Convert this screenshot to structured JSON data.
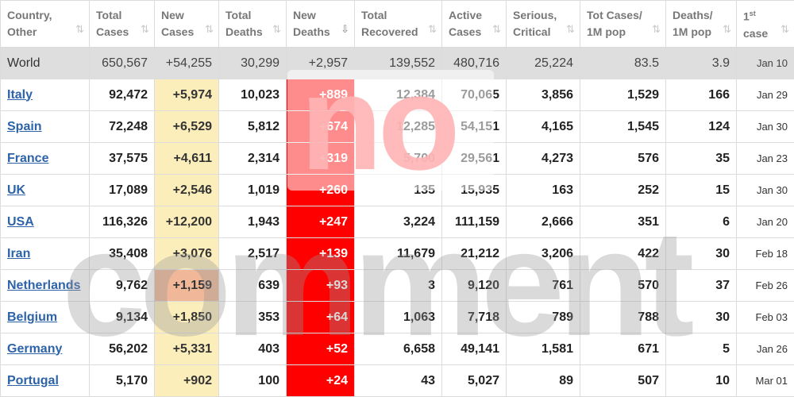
{
  "columns": [
    {
      "line1": "Country,",
      "line2": "Other",
      "sort": "⇅",
      "sup": ""
    },
    {
      "line1": "Total",
      "line2": "Cases",
      "sort": "⇅",
      "sup": ""
    },
    {
      "line1": "New",
      "line2": "Cases",
      "sort": "⇅",
      "sup": ""
    },
    {
      "line1": "Total",
      "line2": "Deaths",
      "sort": "⇅",
      "sup": ""
    },
    {
      "line1": "New",
      "line2": "Deaths",
      "sort": "⇩",
      "sup": ""
    },
    {
      "line1": "Total",
      "line2": "Recovered",
      "sort": "⇅",
      "sup": ""
    },
    {
      "line1": "Active",
      "line2": "Cases",
      "sort": "⇅",
      "sup": ""
    },
    {
      "line1": "Serious,",
      "line2": "Critical",
      "sort": "⇅",
      "sup": ""
    },
    {
      "line1": "Tot Cases/",
      "line2": "1M pop",
      "sort": "⇅",
      "sup": ""
    },
    {
      "line1": "Deaths/",
      "line2": "1M pop",
      "sort": "⇅",
      "sup": ""
    },
    {
      "line1": "1",
      "line2": "case",
      "sort": "⇅",
      "sup": "st"
    }
  ],
  "world": {
    "country": "World",
    "total_cases": "650,567",
    "new_cases": "+54,255",
    "total_deaths": "30,299",
    "new_deaths": "+2,957",
    "total_recovered": "139,552",
    "active_cases": "480,716",
    "serious": "25,224",
    "tot_cases_1m": "83.5",
    "deaths_1m": "3.9",
    "first_case": "Jan 10"
  },
  "rows": [
    {
      "country": "Italy",
      "total_cases": "92,472",
      "new_cases": "+5,974",
      "total_deaths": "10,023",
      "new_deaths": "+889",
      "total_recovered": "12,384",
      "active_cases": "70,065",
      "serious": "3,856",
      "tot_cases_1m": "1,529",
      "deaths_1m": "166",
      "first_case": "Jan 29"
    },
    {
      "country": "Spain",
      "total_cases": "72,248",
      "new_cases": "+6,529",
      "total_deaths": "5,812",
      "new_deaths": "+674",
      "total_recovered": "12,285",
      "active_cases": "54,151",
      "serious": "4,165",
      "tot_cases_1m": "1,545",
      "deaths_1m": "124",
      "first_case": "Jan 30"
    },
    {
      "country": "France",
      "total_cases": "37,575",
      "new_cases": "+4,611",
      "total_deaths": "2,314",
      "new_deaths": "+319",
      "total_recovered": "5,700",
      "active_cases": "29,561",
      "serious": "4,273",
      "tot_cases_1m": "576",
      "deaths_1m": "35",
      "first_case": "Jan 23"
    },
    {
      "country": "UK",
      "total_cases": "17,089",
      "new_cases": "+2,546",
      "total_deaths": "1,019",
      "new_deaths": "+260",
      "total_recovered": "135",
      "active_cases": "15,935",
      "serious": "163",
      "tot_cases_1m": "252",
      "deaths_1m": "15",
      "first_case": "Jan 30"
    },
    {
      "country": "USA",
      "total_cases": "116,326",
      "new_cases": "+12,200",
      "total_deaths": "1,943",
      "new_deaths": "+247",
      "total_recovered": "3,224",
      "active_cases": "111,159",
      "serious": "2,666",
      "tot_cases_1m": "351",
      "deaths_1m": "6",
      "first_case": "Jan 20"
    },
    {
      "country": "Iran",
      "total_cases": "35,408",
      "new_cases": "+3,076",
      "total_deaths": "2,517",
      "new_deaths": "+139",
      "total_recovered": "11,679",
      "active_cases": "21,212",
      "serious": "3,206",
      "tot_cases_1m": "422",
      "deaths_1m": "30",
      "first_case": "Feb 18"
    },
    {
      "country": "Netherlands",
      "total_cases": "9,762",
      "new_cases": "+1,159",
      "total_deaths": "639",
      "new_deaths": "+93",
      "total_recovered": "3",
      "active_cases": "9,120",
      "serious": "761",
      "tot_cases_1m": "570",
      "deaths_1m": "37",
      "first_case": "Feb 26"
    },
    {
      "country": "Belgium",
      "total_cases": "9,134",
      "new_cases": "+1,850",
      "total_deaths": "353",
      "new_deaths": "+64",
      "total_recovered": "1,063",
      "active_cases": "7,718",
      "serious": "789",
      "tot_cases_1m": "788",
      "deaths_1m": "30",
      "first_case": "Feb 03"
    },
    {
      "country": "Germany",
      "total_cases": "56,202",
      "new_cases": "+5,331",
      "total_deaths": "403",
      "new_deaths": "+52",
      "total_recovered": "6,658",
      "active_cases": "49,141",
      "serious": "1,581",
      "tot_cases_1m": "671",
      "deaths_1m": "5",
      "first_case": "Jan 26"
    },
    {
      "country": "Portugal",
      "total_cases": "5,170",
      "new_cases": "+902",
      "total_deaths": "100",
      "new_deaths": "+24",
      "total_recovered": "43",
      "active_cases": "5,027",
      "serious": "89",
      "tot_cases_1m": "507",
      "deaths_1m": "10",
      "first_case": "Mar 01"
    }
  ],
  "watermark": {
    "top": "no",
    "bottom": "comment"
  },
  "colors": {
    "new_cases_bg": "#fbeebb",
    "new_deaths_bg": "#ff0000",
    "world_bg": "#dedede",
    "link": "#2d63a8"
  }
}
